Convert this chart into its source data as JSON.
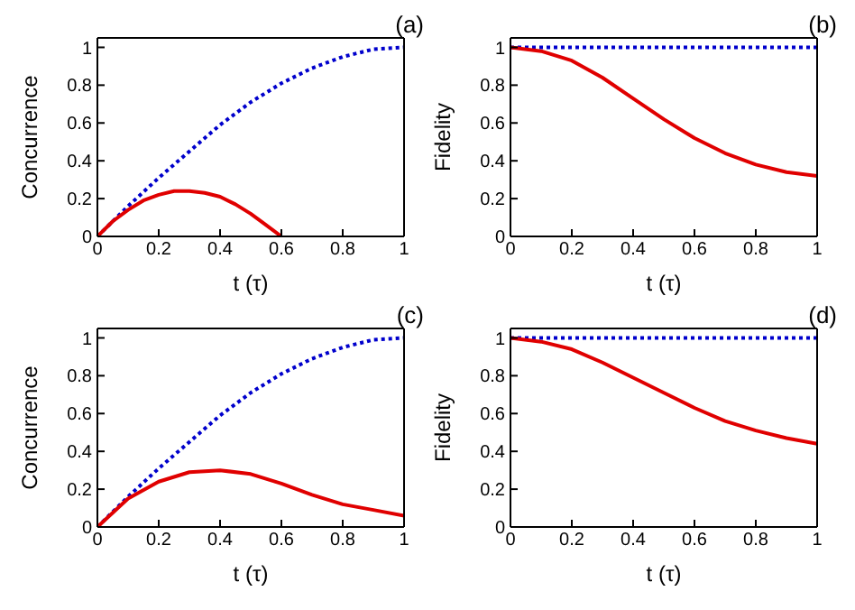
{
  "chart_data": [
    {
      "type": "line",
      "xlabel": "t (τ)",
      "ylabel": "Concurrence",
      "annotations": [
        "(a)"
      ],
      "xlim": [
        0,
        1
      ],
      "ylim": [
        0,
        1.05
      ],
      "xticks": [
        0,
        0.2,
        0.4,
        0.6,
        0.8,
        1
      ],
      "yticks": [
        0,
        0.2,
        0.4,
        0.6,
        0.8,
        1
      ],
      "legend": false,
      "marker": "none",
      "series": [
        {
          "color": "#0000cc",
          "line_style": "dotted",
          "x": [
            0,
            0.1,
            0.2,
            0.3,
            0.4,
            0.5,
            0.6,
            0.7,
            0.8,
            0.9,
            1
          ],
          "values": [
            0,
            0.16,
            0.31,
            0.45,
            0.59,
            0.71,
            0.81,
            0.89,
            0.95,
            0.99,
            1
          ]
        },
        {
          "color": "#e00000",
          "line_style": "solid",
          "x": [
            0,
            0.05,
            0.1,
            0.15,
            0.2,
            0.25,
            0.3,
            0.35,
            0.4,
            0.45,
            0.5,
            0.55,
            0.6
          ],
          "values": [
            0,
            0.08,
            0.14,
            0.19,
            0.22,
            0.24,
            0.24,
            0.23,
            0.21,
            0.17,
            0.12,
            0.06,
            0
          ]
        }
      ]
    },
    {
      "type": "line",
      "xlabel": "t (τ)",
      "ylabel": "Fidelity",
      "annotations": [
        "(b)"
      ],
      "xlim": [
        0,
        1
      ],
      "ylim": [
        0,
        1.05
      ],
      "xticks": [
        0,
        0.2,
        0.4,
        0.6,
        0.8,
        1
      ],
      "yticks": [
        0,
        0.2,
        0.4,
        0.6,
        0.8,
        1
      ],
      "legend": false,
      "marker": "none",
      "series": [
        {
          "color": "#0000cc",
          "line_style": "dotted",
          "x": [
            0,
            1
          ],
          "values": [
            1,
            1
          ]
        },
        {
          "color": "#e00000",
          "line_style": "solid",
          "x": [
            0,
            0.1,
            0.2,
            0.3,
            0.4,
            0.5,
            0.6,
            0.7,
            0.8,
            0.9,
            1
          ],
          "values": [
            1,
            0.98,
            0.93,
            0.84,
            0.73,
            0.62,
            0.52,
            0.44,
            0.38,
            0.34,
            0.32
          ]
        }
      ]
    },
    {
      "type": "line",
      "xlabel": "t (τ)",
      "ylabel": "Concurrence",
      "annotations": [
        "(c)"
      ],
      "xlim": [
        0,
        1
      ],
      "ylim": [
        0,
        1.05
      ],
      "xticks": [
        0,
        0.2,
        0.4,
        0.6,
        0.8,
        1
      ],
      "yticks": [
        0,
        0.2,
        0.4,
        0.6,
        0.8,
        1
      ],
      "legend": false,
      "marker": "none",
      "series": [
        {
          "color": "#0000cc",
          "line_style": "dotted",
          "x": [
            0,
            0.1,
            0.2,
            0.3,
            0.4,
            0.5,
            0.6,
            0.7,
            0.8,
            0.9,
            1
          ],
          "values": [
            0,
            0.16,
            0.31,
            0.45,
            0.59,
            0.71,
            0.81,
            0.89,
            0.95,
            0.99,
            1
          ]
        },
        {
          "color": "#e00000",
          "line_style": "solid",
          "x": [
            0,
            0.1,
            0.2,
            0.3,
            0.4,
            0.5,
            0.6,
            0.7,
            0.8,
            0.9,
            1
          ],
          "values": [
            0,
            0.15,
            0.24,
            0.29,
            0.3,
            0.28,
            0.23,
            0.17,
            0.12,
            0.09,
            0.06
          ]
        }
      ]
    },
    {
      "type": "line",
      "xlabel": "t (τ)",
      "ylabel": "Fidelity",
      "annotations": [
        "(d)"
      ],
      "xlim": [
        0,
        1
      ],
      "ylim": [
        0,
        1.05
      ],
      "xticks": [
        0,
        0.2,
        0.4,
        0.6,
        0.8,
        1
      ],
      "yticks": [
        0,
        0.2,
        0.4,
        0.6,
        0.8,
        1
      ],
      "legend": false,
      "marker": "none",
      "series": [
        {
          "color": "#0000cc",
          "line_style": "dotted",
          "x": [
            0,
            1
          ],
          "values": [
            1,
            1
          ]
        },
        {
          "color": "#e00000",
          "line_style": "solid",
          "x": [
            0,
            0.1,
            0.2,
            0.3,
            0.4,
            0.5,
            0.6,
            0.7,
            0.8,
            0.9,
            1
          ],
          "values": [
            1,
            0.98,
            0.94,
            0.87,
            0.79,
            0.71,
            0.63,
            0.56,
            0.51,
            0.47,
            0.44
          ]
        }
      ]
    }
  ]
}
